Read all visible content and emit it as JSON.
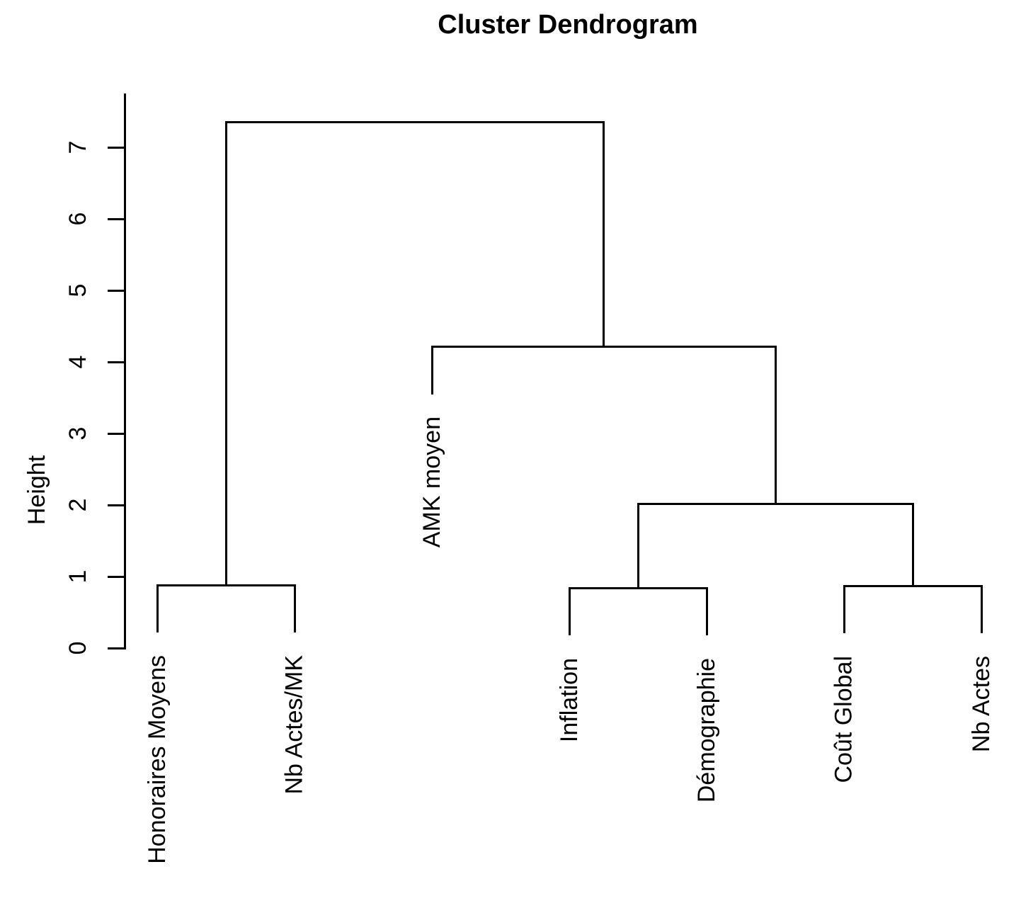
{
  "chart_data": {
    "type": "dendrogram",
    "title": "Cluster Dendrogram",
    "ylabel": "Height",
    "yticks": [
      0,
      1,
      2,
      3,
      4,
      5,
      6,
      7
    ],
    "ylim": [
      0,
      7.75
    ],
    "grid": false,
    "legend": false,
    "leaf_order": [
      "Honoraires Moyens",
      "Nb Actes/MK",
      "AMK moyen",
      "Inflation",
      "Démographie",
      "Coût Global",
      "Nb Actes"
    ],
    "merges": [
      {
        "id": "M1",
        "children": [
          "Honoraires Moyens",
          "Nb Actes/MK"
        ],
        "height": 0.88
      },
      {
        "id": "M2",
        "children": [
          "Inflation",
          "Démographie"
        ],
        "height": 0.84
      },
      {
        "id": "M3",
        "children": [
          "Coût Global",
          "Nb Actes"
        ],
        "height": 0.87
      },
      {
        "id": "M4",
        "children": [
          "M2",
          "M3"
        ],
        "height": 2.01
      },
      {
        "id": "M5",
        "children": [
          "AMK moyen",
          "M4"
        ],
        "height": 4.21
      },
      {
        "id": "M6",
        "children": [
          "M1",
          "M5"
        ],
        "height": 7.35
      }
    ],
    "leaf_hang": 0.65,
    "line_color": "#000000",
    "text_color": "#000000",
    "background_color": "#ffffff"
  }
}
